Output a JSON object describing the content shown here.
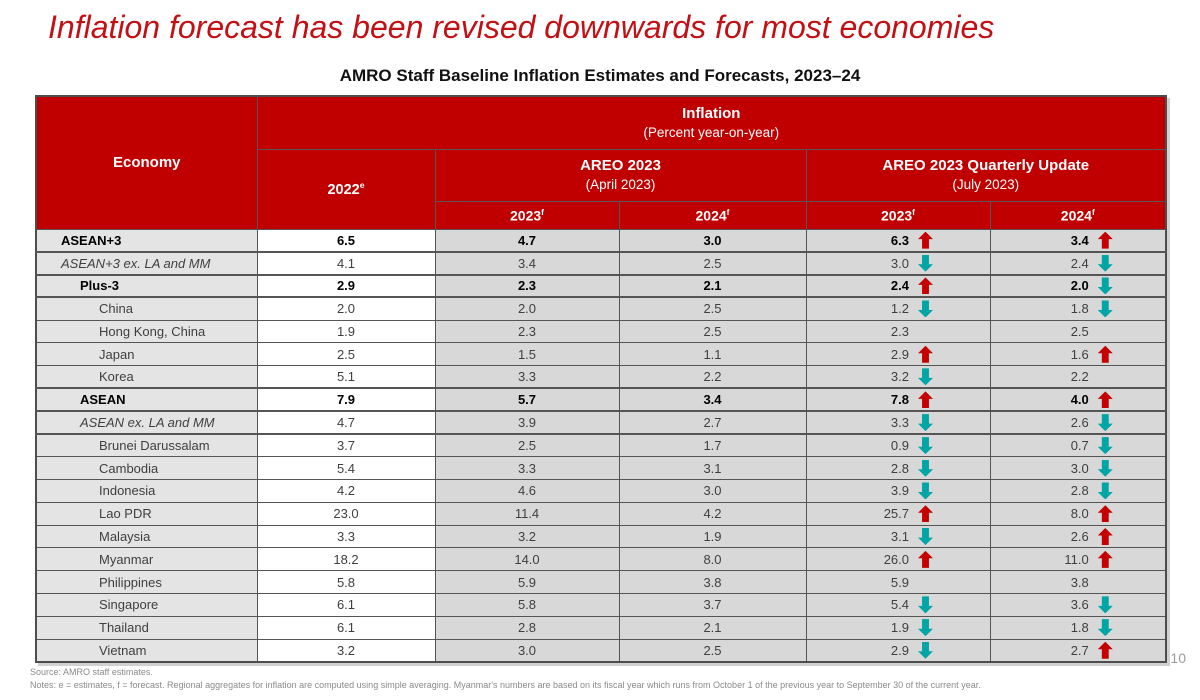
{
  "slide": {
    "title": "Inflation forecast has been revised downwards for most economies",
    "page_number": "10"
  },
  "table": {
    "caption": "AMRO Staff Baseline Inflation Estimates and Forecasts, 2023–24",
    "header": {
      "economy_label": "Economy",
      "inflation_title": "Inflation",
      "inflation_subtitle": "(Percent year-on-year)",
      "base_year": {
        "label": "2022",
        "sup": "e"
      },
      "areo_april": {
        "title": "AREO 2023",
        "subtitle": "(April 2023)"
      },
      "areo_july": {
        "title": "AREO 2023 Quarterly Update",
        "subtitle": "(July 2023)"
      },
      "year_cols": [
        {
          "label": "2023",
          "sup": "f"
        },
        {
          "label": "2024",
          "sup": "f"
        },
        {
          "label": "2023",
          "sup": "f"
        },
        {
          "label": "2024",
          "sup": "f"
        }
      ]
    },
    "rows": [
      {
        "economy": "ASEAN+3",
        "emphasis": "bold",
        "indent": 0,
        "thick_top": false,
        "y2022": "6.5",
        "apr_2023": "4.7",
        "apr_2024": "3.0",
        "jul_2023": "6.3",
        "jul_2023_arrow": "up",
        "jul_2024": "3.4",
        "jul_2024_arrow": "up"
      },
      {
        "economy": "ASEAN+3 ex. LA and MM",
        "emphasis": "italic",
        "indent": 0,
        "thick_top": true,
        "y2022": "4.1",
        "apr_2023": "3.4",
        "apr_2024": "2.5",
        "jul_2023": "3.0",
        "jul_2023_arrow": "down",
        "jul_2024": "2.4",
        "jul_2024_arrow": "down"
      },
      {
        "economy": "Plus-3",
        "emphasis": "bold",
        "indent": 1,
        "thick_top": true,
        "y2022": "2.9",
        "apr_2023": "2.3",
        "apr_2024": "2.1",
        "jul_2023": "2.4",
        "jul_2023_arrow": "up",
        "jul_2024": "2.0",
        "jul_2024_arrow": "down"
      },
      {
        "economy": "China",
        "emphasis": "none",
        "indent": 2,
        "thick_top": true,
        "y2022": "2.0",
        "apr_2023": "2.0",
        "apr_2024": "2.5",
        "jul_2023": "1.2",
        "jul_2023_arrow": "down",
        "jul_2024": "1.8",
        "jul_2024_arrow": "down"
      },
      {
        "economy": "Hong Kong, China",
        "emphasis": "none",
        "indent": 2,
        "thick_top": false,
        "y2022": "1.9",
        "apr_2023": "2.3",
        "apr_2024": "2.5",
        "jul_2023": "2.3",
        "jul_2023_arrow": "",
        "jul_2024": "2.5",
        "jul_2024_arrow": ""
      },
      {
        "economy": "Japan",
        "emphasis": "none",
        "indent": 2,
        "thick_top": false,
        "y2022": "2.5",
        "apr_2023": "1.5",
        "apr_2024": "1.1",
        "jul_2023": "2.9",
        "jul_2023_arrow": "up",
        "jul_2024": "1.6",
        "jul_2024_arrow": "up"
      },
      {
        "economy": "Korea",
        "emphasis": "none",
        "indent": 2,
        "thick_top": false,
        "y2022": "5.1",
        "apr_2023": "3.3",
        "apr_2024": "2.2",
        "jul_2023": "3.2",
        "jul_2023_arrow": "down",
        "jul_2024": "2.2",
        "jul_2024_arrow": ""
      },
      {
        "economy": "ASEAN",
        "emphasis": "bold",
        "indent": 1,
        "thick_top": true,
        "y2022": "7.9",
        "apr_2023": "5.7",
        "apr_2024": "3.4",
        "jul_2023": "7.8",
        "jul_2023_arrow": "up",
        "jul_2024": "4.0",
        "jul_2024_arrow": "up"
      },
      {
        "economy": "ASEAN ex. LA and MM",
        "emphasis": "italic",
        "indent": 1,
        "thick_top": true,
        "y2022": "4.7",
        "apr_2023": "3.9",
        "apr_2024": "2.7",
        "jul_2023": "3.3",
        "jul_2023_arrow": "down",
        "jul_2024": "2.6",
        "jul_2024_arrow": "down"
      },
      {
        "economy": "Brunei Darussalam",
        "emphasis": "none",
        "indent": 2,
        "thick_top": true,
        "y2022": "3.7",
        "apr_2023": "2.5",
        "apr_2024": "1.7",
        "jul_2023": "0.9",
        "jul_2023_arrow": "down",
        "jul_2024": "0.7",
        "jul_2024_arrow": "down"
      },
      {
        "economy": "Cambodia",
        "emphasis": "none",
        "indent": 2,
        "thick_top": false,
        "y2022": "5.4",
        "apr_2023": "3.3",
        "apr_2024": "3.1",
        "jul_2023": "2.8",
        "jul_2023_arrow": "down",
        "jul_2024": "3.0",
        "jul_2024_arrow": "down"
      },
      {
        "economy": "Indonesia",
        "emphasis": "none",
        "indent": 2,
        "thick_top": false,
        "y2022": "4.2",
        "apr_2023": "4.6",
        "apr_2024": "3.0",
        "jul_2023": "3.9",
        "jul_2023_arrow": "down",
        "jul_2024": "2.8",
        "jul_2024_arrow": "down"
      },
      {
        "economy": "Lao PDR",
        "emphasis": "none",
        "indent": 2,
        "thick_top": false,
        "y2022": "23.0",
        "apr_2023": "11.4",
        "apr_2024": "4.2",
        "jul_2023": "25.7",
        "jul_2023_arrow": "up",
        "jul_2024": "8.0",
        "jul_2024_arrow": "up"
      },
      {
        "economy": "Malaysia",
        "emphasis": "none",
        "indent": 2,
        "thick_top": false,
        "y2022": "3.3",
        "apr_2023": "3.2",
        "apr_2024": "1.9",
        "jul_2023": "3.1",
        "jul_2023_arrow": "down",
        "jul_2024": "2.6",
        "jul_2024_arrow": "up"
      },
      {
        "economy": "Myanmar",
        "emphasis": "none",
        "indent": 2,
        "thick_top": false,
        "y2022": "18.2",
        "apr_2023": "14.0",
        "apr_2024": "8.0",
        "jul_2023": "26.0",
        "jul_2023_arrow": "up",
        "jul_2024": "11.0",
        "jul_2024_arrow": "up"
      },
      {
        "economy": "Philippines",
        "emphasis": "none",
        "indent": 2,
        "thick_top": false,
        "y2022": "5.8",
        "apr_2023": "5.9",
        "apr_2024": "3.8",
        "jul_2023": "5.9",
        "jul_2023_arrow": "",
        "jul_2024": "3.8",
        "jul_2024_arrow": ""
      },
      {
        "economy": "Singapore",
        "emphasis": "none",
        "indent": 2,
        "thick_top": false,
        "y2022": "6.1",
        "apr_2023": "5.8",
        "apr_2024": "3.7",
        "jul_2023": "5.4",
        "jul_2023_arrow": "down",
        "jul_2024": "3.6",
        "jul_2024_arrow": "down"
      },
      {
        "economy": "Thailand",
        "emphasis": "none",
        "indent": 2,
        "thick_top": false,
        "y2022": "6.1",
        "apr_2023": "2.8",
        "apr_2024": "2.1",
        "jul_2023": "1.9",
        "jul_2023_arrow": "down",
        "jul_2024": "1.8",
        "jul_2024_arrow": "down"
      },
      {
        "economy": "Vietnam",
        "emphasis": "none",
        "indent": 2,
        "thick_top": false,
        "y2022": "3.2",
        "apr_2023": "3.0",
        "apr_2024": "2.5",
        "jul_2023": "2.9",
        "jul_2023_arrow": "down",
        "jul_2024": "2.7",
        "jul_2024_arrow": "up"
      }
    ]
  },
  "footer": {
    "source": "Source: AMRO staff estimates.",
    "notes": "Notes: e = estimates, f = forecast. Regional aggregates for inflation are computed using simple averaging. Myanmar's numbers are based on its fiscal year which runs from October 1 of the previous year to September 30 of the current year."
  },
  "icons": {
    "up_arrow": "upward-revision-block-arrow",
    "down_arrow": "downward-revision-block-arrow"
  },
  "colors": {
    "header_red": "#C00000",
    "title_red": "#C21014",
    "arrow_up": "#C40000",
    "arrow_down": "#00A5A5"
  }
}
